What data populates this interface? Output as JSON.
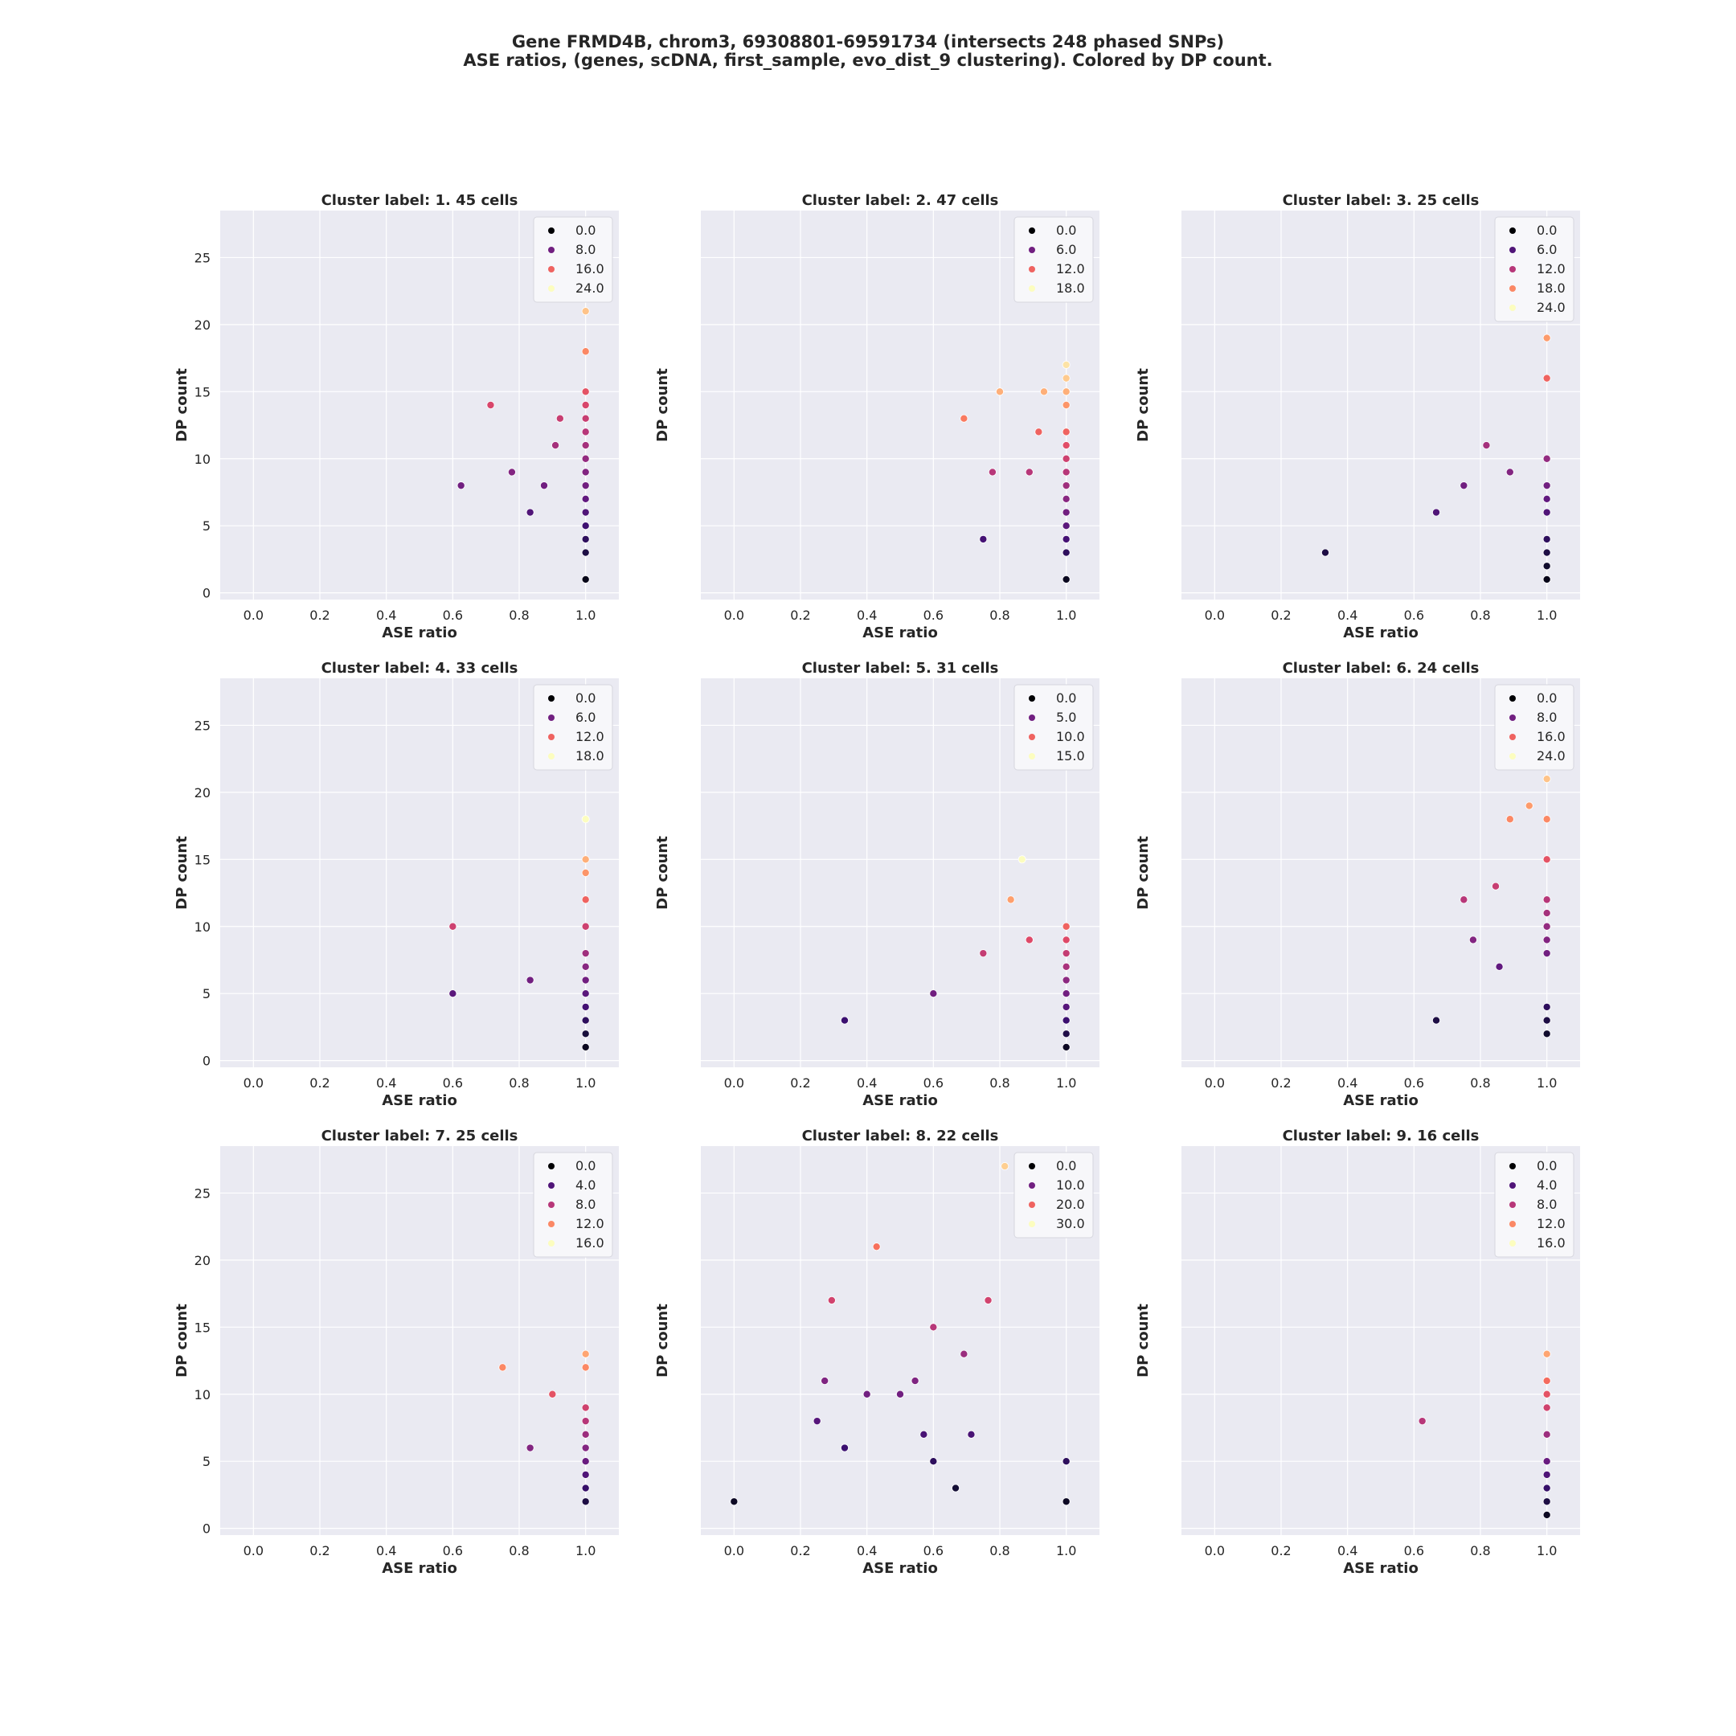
{
  "figure": {
    "title_line1": "Gene FRMD4B, chrom3, 69308801-69591734 (intersects 248 phased SNPs)",
    "title_line2": "ASE ratios, (genes, scDNA, first_sample, evo_dist_9 clustering). Colored by DP count."
  },
  "colors": {
    "panel_background": "#eaeaf2",
    "grid": "#ffffff",
    "colormap": "magma"
  },
  "chart_data": [
    {
      "type": "scatter",
      "title": "Cluster label: 1. 45 cells",
      "xlabel": "ASE ratio",
      "ylabel": "DP count",
      "xlim": [
        -0.1,
        1.1
      ],
      "ylim": [
        -0.5,
        28.5
      ],
      "xticks": [
        "0.0",
        "0.2",
        "0.4",
        "0.6",
        "0.8",
        "1.0"
      ],
      "yticks": [
        "0",
        "5",
        "10",
        "15",
        "20",
        "25"
      ],
      "legend_position": "upper-right",
      "legend": [
        "0.0",
        "8.0",
        "16.0",
        "24.0"
      ],
      "legend_values": [
        0,
        8,
        16,
        24
      ],
      "color_max": 24,
      "points": [
        {
          "x": 1.0,
          "y": 1
        },
        {
          "x": 1.0,
          "y": 3
        },
        {
          "x": 1.0,
          "y": 4
        },
        {
          "x": 1.0,
          "y": 5
        },
        {
          "x": 1.0,
          "y": 6
        },
        {
          "x": 1.0,
          "y": 7
        },
        {
          "x": 1.0,
          "y": 8
        },
        {
          "x": 1.0,
          "y": 9
        },
        {
          "x": 1.0,
          "y": 10
        },
        {
          "x": 1.0,
          "y": 11
        },
        {
          "x": 1.0,
          "y": 12
        },
        {
          "x": 1.0,
          "y": 13
        },
        {
          "x": 1.0,
          "y": 14
        },
        {
          "x": 1.0,
          "y": 15
        },
        {
          "x": 1.0,
          "y": 18
        },
        {
          "x": 1.0,
          "y": 21
        },
        {
          "x": 0.625,
          "y": 8
        },
        {
          "x": 0.778,
          "y": 9
        },
        {
          "x": 0.875,
          "y": 8
        },
        {
          "x": 0.833,
          "y": 6
        },
        {
          "x": 0.909,
          "y": 11
        },
        {
          "x": 0.923,
          "y": 13
        },
        {
          "x": 0.714,
          "y": 14
        }
      ]
    },
    {
      "type": "scatter",
      "title": "Cluster label: 2. 47 cells",
      "xlabel": "ASE ratio",
      "ylabel": "DP count",
      "xlim": [
        -0.1,
        1.1
      ],
      "ylim": [
        -0.5,
        28.5
      ],
      "xticks": [
        "0.0",
        "0.2",
        "0.4",
        "0.6",
        "0.8",
        "1.0"
      ],
      "yticks": [],
      "legend_position": "upper-right",
      "legend": [
        "0.0",
        "6.0",
        "12.0",
        "18.0"
      ],
      "legend_values": [
        0,
        6,
        12,
        18
      ],
      "color_max": 18,
      "points": [
        {
          "x": 1.0,
          "y": 1
        },
        {
          "x": 1.0,
          "y": 3
        },
        {
          "x": 1.0,
          "y": 4
        },
        {
          "x": 1.0,
          "y": 5
        },
        {
          "x": 1.0,
          "y": 6
        },
        {
          "x": 1.0,
          "y": 7
        },
        {
          "x": 1.0,
          "y": 8
        },
        {
          "x": 1.0,
          "y": 9
        },
        {
          "x": 1.0,
          "y": 10
        },
        {
          "x": 1.0,
          "y": 11
        },
        {
          "x": 1.0,
          "y": 12
        },
        {
          "x": 1.0,
          "y": 14
        },
        {
          "x": 1.0,
          "y": 15
        },
        {
          "x": 1.0,
          "y": 16
        },
        {
          "x": 1.0,
          "y": 17
        },
        {
          "x": 0.75,
          "y": 4
        },
        {
          "x": 0.778,
          "y": 9
        },
        {
          "x": 0.889,
          "y": 9
        },
        {
          "x": 0.692,
          "y": 13
        },
        {
          "x": 0.917,
          "y": 12
        },
        {
          "x": 0.8,
          "y": 15
        },
        {
          "x": 0.933,
          "y": 15
        }
      ]
    },
    {
      "type": "scatter",
      "title": "Cluster label: 3. 25 cells",
      "xlabel": "ASE ratio",
      "ylabel": "DP count",
      "xlim": [
        -0.1,
        1.1
      ],
      "ylim": [
        -0.5,
        28.5
      ],
      "xticks": [
        "0.0",
        "0.2",
        "0.4",
        "0.6",
        "0.8",
        "1.0"
      ],
      "yticks": [],
      "legend_position": "upper-right",
      "legend": [
        "0.0",
        "6.0",
        "12.0",
        "18.0",
        "24.0"
      ],
      "legend_values": [
        0,
        6,
        12,
        18,
        24
      ],
      "color_max": 24,
      "points": [
        {
          "x": 1.0,
          "y": 1
        },
        {
          "x": 1.0,
          "y": 2
        },
        {
          "x": 1.0,
          "y": 3
        },
        {
          "x": 1.0,
          "y": 4
        },
        {
          "x": 1.0,
          "y": 6
        },
        {
          "x": 1.0,
          "y": 7
        },
        {
          "x": 1.0,
          "y": 8
        },
        {
          "x": 1.0,
          "y": 10
        },
        {
          "x": 1.0,
          "y": 16
        },
        {
          "x": 1.0,
          "y": 19
        },
        {
          "x": 0.333,
          "y": 3
        },
        {
          "x": 0.667,
          "y": 6
        },
        {
          "x": 0.75,
          "y": 8
        },
        {
          "x": 0.889,
          "y": 9
        },
        {
          "x": 0.818,
          "y": 11
        }
      ]
    },
    {
      "type": "scatter",
      "title": "Cluster label: 4. 33 cells",
      "xlabel": "ASE ratio",
      "ylabel": "DP count",
      "xlim": [
        -0.1,
        1.1
      ],
      "ylim": [
        -0.5,
        28.5
      ],
      "xticks": [
        "0.0",
        "0.2",
        "0.4",
        "0.6",
        "0.8",
        "1.0"
      ],
      "yticks": [
        "0",
        "5",
        "10",
        "15",
        "20",
        "25"
      ],
      "legend_position": "upper-right",
      "legend": [
        "0.0",
        "6.0",
        "12.0",
        "18.0"
      ],
      "legend_values": [
        0,
        6,
        12,
        18
      ],
      "color_max": 18,
      "points": [
        {
          "x": 1.0,
          "y": 1
        },
        {
          "x": 1.0,
          "y": 2
        },
        {
          "x": 1.0,
          "y": 3
        },
        {
          "x": 1.0,
          "y": 4
        },
        {
          "x": 1.0,
          "y": 5
        },
        {
          "x": 1.0,
          "y": 6
        },
        {
          "x": 1.0,
          "y": 7
        },
        {
          "x": 1.0,
          "y": 8
        },
        {
          "x": 1.0,
          "y": 10
        },
        {
          "x": 1.0,
          "y": 12
        },
        {
          "x": 1.0,
          "y": 14
        },
        {
          "x": 1.0,
          "y": 15
        },
        {
          "x": 1.0,
          "y": 18
        },
        {
          "x": 0.6,
          "y": 5
        },
        {
          "x": 0.6,
          "y": 10
        },
        {
          "x": 0.833,
          "y": 6
        }
      ]
    },
    {
      "type": "scatter",
      "title": "Cluster label: 5. 31 cells",
      "xlabel": "ASE ratio",
      "ylabel": "DP count",
      "xlim": [
        -0.1,
        1.1
      ],
      "ylim": [
        -0.5,
        28.5
      ],
      "xticks": [
        "0.0",
        "0.2",
        "0.4",
        "0.6",
        "0.8",
        "1.0"
      ],
      "yticks": [],
      "legend_position": "upper-right",
      "legend": [
        "0.0",
        "5.0",
        "10.0",
        "15.0"
      ],
      "legend_values": [
        0,
        5,
        10,
        15
      ],
      "color_max": 15,
      "points": [
        {
          "x": 1.0,
          "y": 1
        },
        {
          "x": 1.0,
          "y": 2
        },
        {
          "x": 1.0,
          "y": 3
        },
        {
          "x": 1.0,
          "y": 4
        },
        {
          "x": 1.0,
          "y": 5
        },
        {
          "x": 1.0,
          "y": 6
        },
        {
          "x": 1.0,
          "y": 7
        },
        {
          "x": 1.0,
          "y": 8
        },
        {
          "x": 1.0,
          "y": 9
        },
        {
          "x": 1.0,
          "y": 10
        },
        {
          "x": 0.333,
          "y": 3
        },
        {
          "x": 0.6,
          "y": 5
        },
        {
          "x": 0.75,
          "y": 8
        },
        {
          "x": 0.889,
          "y": 9
        },
        {
          "x": 0.833,
          "y": 12
        },
        {
          "x": 0.867,
          "y": 15
        }
      ]
    },
    {
      "type": "scatter",
      "title": "Cluster label: 6. 24 cells",
      "xlabel": "ASE ratio",
      "ylabel": "DP count",
      "xlim": [
        -0.1,
        1.1
      ],
      "ylim": [
        -0.5,
        28.5
      ],
      "xticks": [
        "0.0",
        "0.2",
        "0.4",
        "0.6",
        "0.8",
        "1.0"
      ],
      "yticks": [],
      "legend_position": "upper-right",
      "legend": [
        "0.0",
        "8.0",
        "16.0",
        "24.0"
      ],
      "legend_values": [
        0,
        8,
        16,
        24
      ],
      "color_max": 24,
      "points": [
        {
          "x": 1.0,
          "y": 2
        },
        {
          "x": 1.0,
          "y": 3
        },
        {
          "x": 1.0,
          "y": 4
        },
        {
          "x": 1.0,
          "y": 8
        },
        {
          "x": 1.0,
          "y": 9
        },
        {
          "x": 1.0,
          "y": 10
        },
        {
          "x": 1.0,
          "y": 11
        },
        {
          "x": 1.0,
          "y": 12
        },
        {
          "x": 1.0,
          "y": 15
        },
        {
          "x": 1.0,
          "y": 18
        },
        {
          "x": 1.0,
          "y": 21
        },
        {
          "x": 0.667,
          "y": 3
        },
        {
          "x": 0.857,
          "y": 7
        },
        {
          "x": 0.778,
          "y": 9
        },
        {
          "x": 0.75,
          "y": 12
        },
        {
          "x": 0.846,
          "y": 13
        },
        {
          "x": 0.889,
          "y": 18
        },
        {
          "x": 0.947,
          "y": 19
        }
      ]
    },
    {
      "type": "scatter",
      "title": "Cluster label: 7. 25 cells",
      "xlabel": "ASE ratio",
      "ylabel": "DP count",
      "xlim": [
        -0.1,
        1.1
      ],
      "ylim": [
        -0.5,
        28.5
      ],
      "xticks": [
        "0.0",
        "0.2",
        "0.4",
        "0.6",
        "0.8",
        "1.0"
      ],
      "yticks": [
        "0",
        "5",
        "10",
        "15",
        "20",
        "25"
      ],
      "legend_position": "upper-right",
      "legend": [
        "0.0",
        "4.0",
        "8.0",
        "12.0",
        "16.0"
      ],
      "legend_values": [
        0,
        4,
        8,
        12,
        16
      ],
      "color_max": 16,
      "points": [
        {
          "x": 1.0,
          "y": 2
        },
        {
          "x": 1.0,
          "y": 3
        },
        {
          "x": 1.0,
          "y": 4
        },
        {
          "x": 1.0,
          "y": 5
        },
        {
          "x": 1.0,
          "y": 6
        },
        {
          "x": 1.0,
          "y": 7
        },
        {
          "x": 1.0,
          "y": 8
        },
        {
          "x": 1.0,
          "y": 9
        },
        {
          "x": 1.0,
          "y": 12
        },
        {
          "x": 1.0,
          "y": 13
        },
        {
          "x": 0.833,
          "y": 6
        },
        {
          "x": 0.9,
          "y": 10
        },
        {
          "x": 0.75,
          "y": 12
        }
      ]
    },
    {
      "type": "scatter",
      "title": "Cluster label: 8. 22 cells",
      "xlabel": "ASE ratio",
      "ylabel": "DP count",
      "xlim": [
        -0.1,
        1.1
      ],
      "ylim": [
        -0.5,
        28.5
      ],
      "xticks": [
        "0.0",
        "0.2",
        "0.4",
        "0.6",
        "0.8",
        "1.0"
      ],
      "yticks": [],
      "legend_position": "upper-right",
      "legend": [
        "0.0",
        "10.0",
        "20.0",
        "30.0"
      ],
      "legend_values": [
        0,
        10,
        20,
        30
      ],
      "color_max": 30,
      "points": [
        {
          "x": 0.0,
          "y": 2
        },
        {
          "x": 1.0,
          "y": 2
        },
        {
          "x": 1.0,
          "y": 5
        },
        {
          "x": 0.6,
          "y": 5
        },
        {
          "x": 0.667,
          "y": 3
        },
        {
          "x": 0.333,
          "y": 6
        },
        {
          "x": 0.25,
          "y": 8
        },
        {
          "x": 0.571,
          "y": 7
        },
        {
          "x": 0.714,
          "y": 7
        },
        {
          "x": 0.4,
          "y": 10
        },
        {
          "x": 0.5,
          "y": 10
        },
        {
          "x": 0.273,
          "y": 11
        },
        {
          "x": 0.545,
          "y": 11
        },
        {
          "x": 0.692,
          "y": 13
        },
        {
          "x": 0.6,
          "y": 15
        },
        {
          "x": 0.294,
          "y": 17
        },
        {
          "x": 0.765,
          "y": 17
        },
        {
          "x": 0.429,
          "y": 21
        },
        {
          "x": 0.815,
          "y": 27
        }
      ]
    },
    {
      "type": "scatter",
      "title": "Cluster label: 9. 16 cells",
      "xlabel": "ASE ratio",
      "ylabel": "DP count",
      "xlim": [
        -0.1,
        1.1
      ],
      "ylim": [
        -0.5,
        28.5
      ],
      "xticks": [
        "0.0",
        "0.2",
        "0.4",
        "0.6",
        "0.8",
        "1.0"
      ],
      "yticks": [],
      "legend_position": "upper-right",
      "legend": [
        "0.0",
        "4.0",
        "8.0",
        "12.0",
        "16.0"
      ],
      "legend_values": [
        0,
        4,
        8,
        12,
        16
      ],
      "color_max": 16,
      "points": [
        {
          "x": 1.0,
          "y": 1
        },
        {
          "x": 1.0,
          "y": 2
        },
        {
          "x": 1.0,
          "y": 3
        },
        {
          "x": 1.0,
          "y": 4
        },
        {
          "x": 1.0,
          "y": 5
        },
        {
          "x": 1.0,
          "y": 7
        },
        {
          "x": 1.0,
          "y": 9
        },
        {
          "x": 1.0,
          "y": 10
        },
        {
          "x": 1.0,
          "y": 11
        },
        {
          "x": 1.0,
          "y": 13
        },
        {
          "x": 0.625,
          "y": 8
        }
      ]
    }
  ]
}
